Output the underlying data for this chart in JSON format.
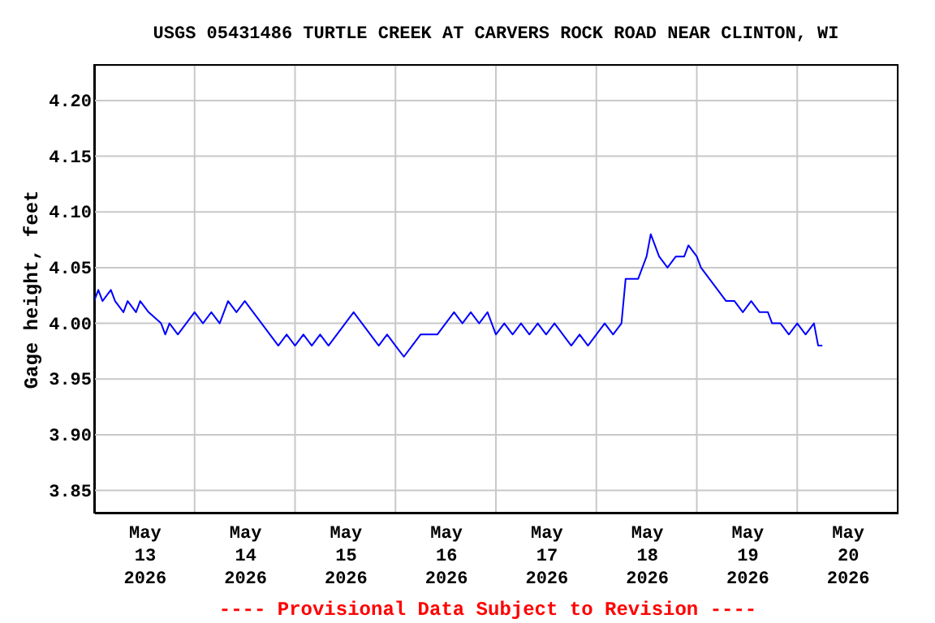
{
  "chart_data": {
    "type": "line",
    "title": "USGS 05431486 TURTLE CREEK AT CARVERS ROCK ROAD NEAR CLINTON, WI",
    "ylabel": "Gage height, feet",
    "annotations": [
      "---- Provisional Data Subject to Revision ----"
    ],
    "x": [
      "2026-05-13T00:00",
      "2026-05-13T01:00",
      "2026-05-13T02:00",
      "2026-05-13T04:00",
      "2026-05-13T05:00",
      "2026-05-13T07:00",
      "2026-05-13T08:00",
      "2026-05-13T10:00",
      "2026-05-13T11:00",
      "2026-05-13T13:00",
      "2026-05-13T16:00",
      "2026-05-13T17:00",
      "2026-05-13T18:00",
      "2026-05-13T20:00",
      "2026-05-13T22:00",
      "2026-05-14T00:00",
      "2026-05-14T02:00",
      "2026-05-14T04:00",
      "2026-05-14T06:00",
      "2026-05-14T08:00",
      "2026-05-14T10:00",
      "2026-05-14T12:00",
      "2026-05-14T14:00",
      "2026-05-14T16:00",
      "2026-05-14T18:00",
      "2026-05-14T20:00",
      "2026-05-14T22:00",
      "2026-05-15T00:00",
      "2026-05-15T02:00",
      "2026-05-15T04:00",
      "2026-05-15T06:00",
      "2026-05-15T08:00",
      "2026-05-15T10:00",
      "2026-05-15T12:00",
      "2026-05-15T14:00",
      "2026-05-15T16:00",
      "2026-05-15T18:00",
      "2026-05-15T20:00",
      "2026-05-15T22:00",
      "2026-05-16T00:00",
      "2026-05-16T02:00",
      "2026-05-16T04:00",
      "2026-05-16T06:00",
      "2026-05-16T10:00",
      "2026-05-16T12:00",
      "2026-05-16T14:00",
      "2026-05-16T16:00",
      "2026-05-16T18:00",
      "2026-05-16T20:00",
      "2026-05-16T22:00",
      "2026-05-17T00:00",
      "2026-05-17T02:00",
      "2026-05-17T04:00",
      "2026-05-17T06:00",
      "2026-05-17T08:00",
      "2026-05-17T10:00",
      "2026-05-17T12:00",
      "2026-05-17T14:00",
      "2026-05-17T16:00",
      "2026-05-17T18:00",
      "2026-05-17T20:00",
      "2026-05-17T22:00",
      "2026-05-18T00:00",
      "2026-05-18T02:00",
      "2026-05-18T04:00",
      "2026-05-18T06:00",
      "2026-05-18T07:00",
      "2026-05-18T10:00",
      "2026-05-18T11:00",
      "2026-05-18T12:00",
      "2026-05-18T13:00",
      "2026-05-18T14:00",
      "2026-05-18T15:00",
      "2026-05-18T17:00",
      "2026-05-18T19:00",
      "2026-05-18T21:00",
      "2026-05-18T22:00",
      "2026-05-19T00:00",
      "2026-05-19T01:00",
      "2026-05-19T03:00",
      "2026-05-19T05:00",
      "2026-05-19T07:00",
      "2026-05-19T09:00",
      "2026-05-19T11:00",
      "2026-05-19T13:00",
      "2026-05-19T15:00",
      "2026-05-19T17:00",
      "2026-05-19T18:00",
      "2026-05-19T20:00",
      "2026-05-19T22:00",
      "2026-05-20T00:00",
      "2026-05-20T02:00",
      "2026-05-20T04:00",
      "2026-05-20T05:00",
      "2026-05-20T06:00"
    ],
    "series": [
      {
        "color": "#0000ff",
        "values": [
          4.02,
          4.03,
          4.02,
          4.03,
          4.02,
          4.01,
          4.02,
          4.01,
          4.02,
          4.01,
          4.0,
          3.99,
          4.0,
          3.99,
          4.0,
          4.01,
          4.0,
          4.01,
          4.0,
          4.02,
          4.01,
          4.02,
          4.01,
          4.0,
          3.99,
          3.98,
          3.99,
          3.98,
          3.99,
          3.98,
          3.99,
          3.98,
          3.99,
          4.0,
          4.01,
          4.0,
          3.99,
          3.98,
          3.99,
          3.98,
          3.97,
          3.98,
          3.99,
          3.99,
          4.0,
          4.01,
          4.0,
          4.01,
          4.0,
          4.01,
          3.99,
          4.0,
          3.99,
          4.0,
          3.99,
          4.0,
          3.99,
          4.0,
          3.99,
          3.98,
          3.99,
          3.98,
          3.99,
          4.0,
          3.99,
          4.0,
          4.04,
          4.04,
          4.05,
          4.06,
          4.08,
          4.07,
          4.06,
          4.05,
          4.06,
          4.06,
          4.07,
          4.06,
          4.05,
          4.04,
          4.03,
          4.02,
          4.02,
          4.01,
          4.02,
          4.01,
          4.01,
          4.0,
          4.0,
          3.99,
          4.0,
          3.99,
          4.0,
          3.98,
          3.98
        ]
      }
    ],
    "xlim": [
      "2026-05-13T00:00",
      "2026-05-21T00:00"
    ],
    "xticks": [
      {
        "value": "2026-05-13T00:00",
        "label": null
      },
      {
        "value": "2026-05-13T12:00",
        "label": "May\n13\n2026"
      },
      {
        "value": "2026-05-14T00:00",
        "label": null
      },
      {
        "value": "2026-05-14T12:00",
        "label": "May\n14\n2026"
      },
      {
        "value": "2026-05-15T00:00",
        "label": null
      },
      {
        "value": "2026-05-15T12:00",
        "label": "May\n15\n2026"
      },
      {
        "value": "2026-05-16T00:00",
        "label": null
      },
      {
        "value": "2026-05-16T12:00",
        "label": "May\n16\n2026"
      },
      {
        "value": "2026-05-17T00:00",
        "label": null
      },
      {
        "value": "2026-05-17T12:00",
        "label": "May\n17\n2026"
      },
      {
        "value": "2026-05-18T00:00",
        "label": null
      },
      {
        "value": "2026-05-18T12:00",
        "label": "May\n18\n2026"
      },
      {
        "value": "2026-05-19T00:00",
        "label": null
      },
      {
        "value": "2026-05-19T12:00",
        "label": "May\n19\n2026"
      },
      {
        "value": "2026-05-20T00:00",
        "label": null
      },
      {
        "value": "2026-05-20T12:00",
        "label": "May\n20\n2026"
      },
      {
        "value": "2026-05-21T00:00",
        "label": null
      }
    ],
    "ylim": [
      3.83,
      4.232
    ],
    "yticks": [
      {
        "value": 3.85,
        "label": "3.85"
      },
      {
        "value": 3.9,
        "label": "3.90"
      },
      {
        "value": 3.95,
        "label": "3.95"
      },
      {
        "value": 4.0,
        "label": "4.00"
      },
      {
        "value": 4.05,
        "label": "4.05"
      },
      {
        "value": 4.1,
        "label": "4.10"
      },
      {
        "value": 4.15,
        "label": "4.15"
      },
      {
        "value": 4.2,
        "label": "4.20"
      }
    ],
    "grid": true,
    "marker": "none",
    "line_style": "solid"
  }
}
